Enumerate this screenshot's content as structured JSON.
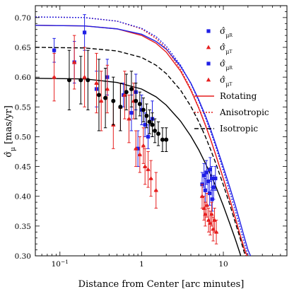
{
  "chart_data": {
    "type": "scatter",
    "xlabel": "Distance from Center [arc minutes]",
    "ylabel_main": "σ̂",
    "ylabel_sub": "μ",
    "ylabel_unit": "[mas/yr]",
    "xscale": "log",
    "xlim": [
      0.05,
      60
    ],
    "ylim": [
      0.3,
      0.72
    ],
    "x_tick_labels": [
      {
        "value": 0.1,
        "base": "10",
        "exp": "−1"
      },
      {
        "value": 1,
        "base": "1",
        "exp": ""
      },
      {
        "value": 10,
        "base": "10",
        "exp": ""
      }
    ],
    "y_ticks": [
      "0.30",
      "0.35",
      "0.40",
      "0.45",
      "0.50",
      "0.55",
      "0.60",
      "0.65",
      "0.70"
    ],
    "legend_position": "top-right",
    "legend": [
      {
        "kind": "marker",
        "shape": "square",
        "color": "#1f1fe6",
        "label": "σ̂",
        "sub": "μ",
        "subsub": "R"
      },
      {
        "kind": "marker",
        "shape": "triangle",
        "color": "#e61f1f",
        "label": "σ̂",
        "sub": "μ",
        "subsub": "T"
      },
      {
        "kind": "marker",
        "shape": "square",
        "color": "#1f1fe6",
        "label": "σ̂",
        "sub": "μ",
        "subsub": "R"
      },
      {
        "kind": "marker",
        "shape": "triangle",
        "color": "#e61f1f",
        "label": "σ̂",
        "sub": "μ",
        "subsub": "T"
      },
      {
        "kind": "line",
        "dash": "solid",
        "color": "#e61f1f",
        "label": "Rotating"
      },
      {
        "kind": "line",
        "dash": "dotted",
        "color": "#e61f1f",
        "label": "Anisotropic"
      },
      {
        "kind": "line",
        "dash": "dashed",
        "color": "#000000",
        "label": "Isotropic"
      }
    ],
    "curves": [
      {
        "name": "Rotating",
        "color": "#e61f1f",
        "dash": "solid",
        "points": [
          [
            0.05,
            0.687
          ],
          [
            0.2,
            0.686
          ],
          [
            0.5,
            0.681
          ],
          [
            1,
            0.67
          ],
          [
            1.5,
            0.657
          ],
          [
            2,
            0.642
          ],
          [
            3,
            0.61
          ],
          [
            4,
            0.578
          ],
          [
            5,
            0.548
          ],
          [
            6,
            0.52
          ],
          [
            7,
            0.495
          ],
          [
            8,
            0.471
          ],
          [
            10,
            0.43
          ],
          [
            12,
            0.395
          ],
          [
            14,
            0.364
          ],
          [
            16,
            0.336
          ],
          [
            18,
            0.313
          ],
          [
            19.5,
            0.3
          ]
        ]
      },
      {
        "name": "Rotating (blue)",
        "color": "#1f1fe6",
        "dash": "solid",
        "points": [
          [
            0.05,
            0.687
          ],
          [
            0.2,
            0.686
          ],
          [
            0.5,
            0.681
          ],
          [
            1,
            0.672
          ],
          [
            1.5,
            0.66
          ],
          [
            2,
            0.647
          ],
          [
            3,
            0.618
          ],
          [
            4,
            0.59
          ],
          [
            5,
            0.562
          ],
          [
            6,
            0.536
          ],
          [
            7,
            0.512
          ],
          [
            8,
            0.489
          ],
          [
            10,
            0.449
          ],
          [
            12,
            0.415
          ],
          [
            14,
            0.385
          ],
          [
            16,
            0.357
          ],
          [
            18,
            0.332
          ],
          [
            20,
            0.31
          ],
          [
            21.5,
            0.3
          ]
        ]
      },
      {
        "name": "Anisotropic",
        "color": "#e61f1f",
        "dash": "dotted",
        "points": [
          [
            0.05,
            0.701
          ],
          [
            0.2,
            0.7
          ],
          [
            0.5,
            0.694
          ],
          [
            1,
            0.681
          ],
          [
            1.5,
            0.665
          ],
          [
            2,
            0.648
          ],
          [
            3,
            0.613
          ],
          [
            4,
            0.58
          ],
          [
            5,
            0.549
          ],
          [
            6,
            0.521
          ],
          [
            7,
            0.495
          ],
          [
            8,
            0.471
          ],
          [
            10,
            0.429
          ],
          [
            12,
            0.393
          ],
          [
            14,
            0.362
          ],
          [
            16,
            0.334
          ],
          [
            18,
            0.309
          ],
          [
            19,
            0.3
          ]
        ]
      },
      {
        "name": "Anisotropic (blue)",
        "color": "#1f1fe6",
        "dash": "dotted",
        "points": [
          [
            0.05,
            0.701
          ],
          [
            0.2,
            0.7
          ],
          [
            0.5,
            0.694
          ],
          [
            1,
            0.682
          ],
          [
            1.5,
            0.668
          ],
          [
            2,
            0.652
          ],
          [
            3,
            0.62
          ],
          [
            4,
            0.589
          ],
          [
            5,
            0.56
          ],
          [
            6,
            0.533
          ],
          [
            7,
            0.508
          ],
          [
            8,
            0.485
          ],
          [
            10,
            0.443
          ],
          [
            12,
            0.407
          ],
          [
            14,
            0.376
          ],
          [
            16,
            0.348
          ],
          [
            18,
            0.323
          ],
          [
            20,
            0.301
          ],
          [
            20.3,
            0.3
          ]
        ]
      },
      {
        "name": "Isotropic",
        "color": "#000000",
        "dash": "dashed",
        "points": [
          [
            0.05,
            0.65
          ],
          [
            0.2,
            0.649
          ],
          [
            0.5,
            0.644
          ],
          [
            1,
            0.633
          ],
          [
            1.5,
            0.62
          ],
          [
            2,
            0.606
          ],
          [
            3,
            0.578
          ],
          [
            4,
            0.551
          ],
          [
            5,
            0.525
          ],
          [
            6,
            0.501
          ],
          [
            7,
            0.478
          ],
          [
            8,
            0.457
          ],
          [
            10,
            0.419
          ],
          [
            12,
            0.386
          ],
          [
            14,
            0.356
          ],
          [
            16,
            0.33
          ],
          [
            18,
            0.306
          ],
          [
            18.8,
            0.3
          ]
        ]
      },
      {
        "name": "King (black)",
        "color": "#000000",
        "dash": "solid",
        "points": [
          [
            0.05,
            0.598
          ],
          [
            0.2,
            0.597
          ],
          [
            0.5,
            0.591
          ],
          [
            1,
            0.58
          ],
          [
            1.5,
            0.567
          ],
          [
            2,
            0.553
          ],
          [
            3,
            0.526
          ],
          [
            4,
            0.501
          ],
          [
            5,
            0.478
          ],
          [
            6,
            0.456
          ],
          [
            7,
            0.436
          ],
          [
            8,
            0.418
          ],
          [
            10,
            0.384
          ],
          [
            12,
            0.354
          ],
          [
            14,
            0.328
          ],
          [
            16,
            0.304
          ],
          [
            16.3,
            0.3
          ]
        ]
      }
    ],
    "series": [
      {
        "name": "σ̂_μR",
        "marker": "square",
        "color": "#1f1fe6",
        "points": [
          [
            0.085,
            0.645,
            0.02
          ],
          [
            0.15,
            0.625,
            0.035
          ],
          [
            0.2,
            0.675,
            0.03
          ],
          [
            0.28,
            0.58,
            0.03
          ],
          [
            0.38,
            0.6,
            0.03
          ],
          [
            0.6,
            0.57,
            0.02
          ],
          [
            0.75,
            0.54,
            0.03
          ],
          [
            0.85,
            0.575,
            0.03
          ],
          [
            1.0,
            0.545,
            0.025
          ],
          [
            1.1,
            0.52,
            0.02
          ],
          [
            1.2,
            0.5,
            0.02
          ],
          [
            1.35,
            0.53,
            0.03
          ],
          [
            0.9,
            0.48,
            0.03
          ],
          [
            5.8,
            0.435,
            0.02
          ],
          [
            6.2,
            0.44,
            0.02
          ],
          [
            6.5,
            0.425,
            0.02
          ],
          [
            6.9,
            0.445,
            0.02
          ],
          [
            7.2,
            0.43,
            0.02
          ],
          [
            7.6,
            0.415,
            0.02
          ],
          [
            6.0,
            0.41,
            0.02
          ],
          [
            6.8,
            0.405,
            0.02
          ],
          [
            7.3,
            0.395,
            0.02
          ],
          [
            8.0,
            0.43,
            0.02
          ],
          [
            5.5,
            0.42,
            0.02
          ]
        ]
      },
      {
        "name": "σ̂_μT",
        "marker": "triangle",
        "color": "#e61f1f",
        "points": [
          [
            0.085,
            0.6,
            0.04
          ],
          [
            0.15,
            0.625,
            0.045
          ],
          [
            0.2,
            0.6,
            0.05
          ],
          [
            0.28,
            0.59,
            0.05
          ],
          [
            0.32,
            0.56,
            0.05
          ],
          [
            0.38,
            0.58,
            0.04
          ],
          [
            0.45,
            0.52,
            0.04
          ],
          [
            0.55,
            0.55,
            0.04
          ],
          [
            0.62,
            0.57,
            0.04
          ],
          [
            0.7,
            0.53,
            0.04
          ],
          [
            0.8,
            0.56,
            0.03
          ],
          [
            0.85,
            0.48,
            0.03
          ],
          [
            0.95,
            0.47,
            0.03
          ],
          [
            1.05,
            0.485,
            0.03
          ],
          [
            1.1,
            0.45,
            0.03
          ],
          [
            1.2,
            0.445,
            0.03
          ],
          [
            1.3,
            0.43,
            0.03
          ],
          [
            1.5,
            0.41,
            0.03
          ],
          [
            5.5,
            0.4,
            0.02
          ],
          [
            5.8,
            0.38,
            0.02
          ],
          [
            6.0,
            0.37,
            0.02
          ],
          [
            6.3,
            0.385,
            0.02
          ],
          [
            6.6,
            0.36,
            0.02
          ],
          [
            6.9,
            0.355,
            0.02
          ],
          [
            7.2,
            0.37,
            0.02
          ],
          [
            7.5,
            0.345,
            0.02
          ],
          [
            7.8,
            0.36,
            0.02
          ],
          [
            8.2,
            0.34,
            0.02
          ]
        ]
      },
      {
        "name": "Black",
        "marker": "circle",
        "color": "#000000",
        "points": [
          [
            0.13,
            0.595,
            0.05
          ],
          [
            0.18,
            0.595,
            0.04
          ],
          [
            0.22,
            0.595,
            0.05
          ],
          [
            0.3,
            0.57,
            0.06
          ],
          [
            0.36,
            0.565,
            0.05
          ],
          [
            0.45,
            0.56,
            0.04
          ],
          [
            0.55,
            0.55,
            0.04
          ],
          [
            0.65,
            0.575,
            0.03
          ],
          [
            0.75,
            0.58,
            0.03
          ],
          [
            0.85,
            0.56,
            0.03
          ],
          [
            0.95,
            0.555,
            0.02
          ],
          [
            1.05,
            0.545,
            0.02
          ],
          [
            1.15,
            0.535,
            0.02
          ],
          [
            1.25,
            0.525,
            0.02
          ],
          [
            1.35,
            0.52,
            0.02
          ],
          [
            1.45,
            0.51,
            0.02
          ],
          [
            1.6,
            0.505,
            0.02
          ],
          [
            1.8,
            0.495,
            0.02
          ],
          [
            2.0,
            0.495,
            0.02
          ]
        ]
      }
    ]
  }
}
